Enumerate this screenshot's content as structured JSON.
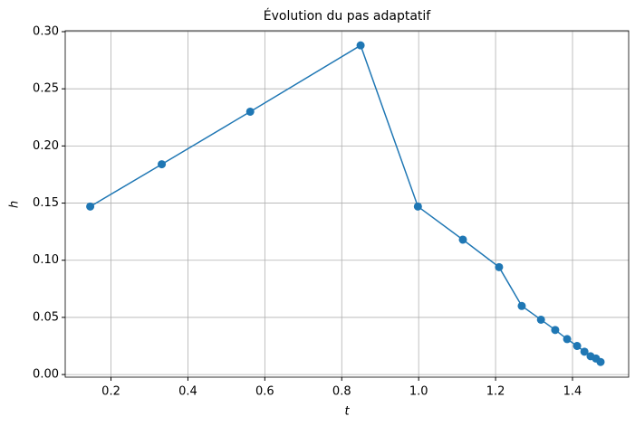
{
  "chart_data": {
    "type": "line",
    "title": "Évolution du pas adaptatif",
    "xlabel": "t",
    "ylabel": "h",
    "series": [
      {
        "color": "#1f77b4",
        "x": [
          0.146,
          0.332,
          0.562,
          0.849,
          0.998,
          1.115,
          1.209,
          1.268,
          1.318,
          1.355,
          1.386,
          1.412,
          1.431,
          1.447,
          1.461,
          1.473
        ],
        "values": [
          0.147,
          0.184,
          0.23,
          0.288,
          0.147,
          0.118,
          0.094,
          0.06,
          0.048,
          0.039,
          0.031,
          0.025,
          0.02,
          0.016,
          0.014,
          0.011
        ]
      }
    ],
    "xlim": [
      0.081,
      1.546
    ],
    "ylim": [
      -0.0023,
      0.3008
    ],
    "xticks": [
      {
        "value": 0.2,
        "label": "0.2"
      },
      {
        "value": 0.4,
        "label": "0.4"
      },
      {
        "value": 0.6,
        "label": "0.6"
      },
      {
        "value": 0.8,
        "label": "0.8"
      },
      {
        "value": 1.0,
        "label": "1.0"
      },
      {
        "value": 1.2,
        "label": "1.2"
      },
      {
        "value": 1.4,
        "label": "1.4"
      }
    ],
    "yticks": [
      {
        "value": 0,
        "label": "0.00"
      },
      {
        "value": 0.05,
        "label": "0.05"
      },
      {
        "value": 0.1,
        "label": "0.10"
      },
      {
        "value": 0.15,
        "label": "0.15"
      },
      {
        "value": 0.2,
        "label": "0.20"
      },
      {
        "value": 0.25,
        "label": "0.25"
      },
      {
        "value": 0.3,
        "label": "0.30"
      }
    ],
    "grid": true,
    "markers": true
  }
}
